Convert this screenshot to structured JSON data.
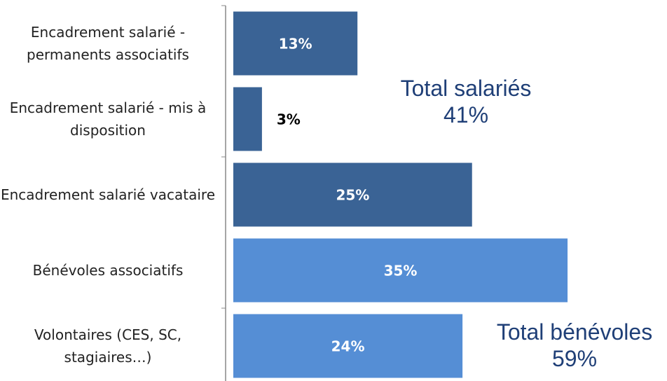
{
  "chart_data": {
    "type": "barh",
    "categories": [
      "Encadrement salarié - permanents associatifs",
      "Encadrement salarié - mis à disposition",
      "Encadrement salarié vacataire",
      "Bénévoles associatifs",
      "Volontaires (CES, SC, stagiaires…)"
    ],
    "values": [
      13,
      3,
      25,
      35,
      24
    ],
    "value_labels": [
      "13%",
      "3%",
      "25%",
      "35%",
      "24%"
    ],
    "colors": [
      "#3a6395",
      "#3a6395",
      "#3a6395",
      "#558ed5",
      "#558ed5"
    ],
    "annotations": [
      {
        "title": "Total salariés",
        "label": "41%"
      },
      {
        "title": "Total bénévoles",
        "label": "59%"
      }
    ]
  }
}
